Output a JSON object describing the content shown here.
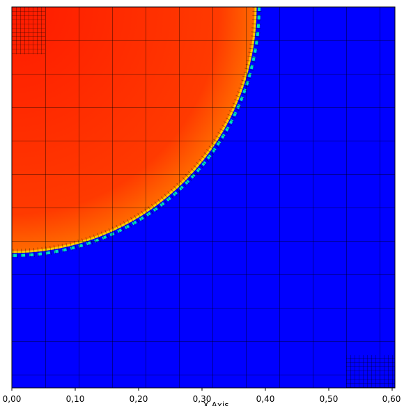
{
  "chart_data": {
    "type": "field",
    "xlabel": "X Axis",
    "xlim": [
      0,
      0.6
    ],
    "xticks": [
      {
        "value": 0,
        "label": "0,00"
      },
      {
        "value": 0.1,
        "label": "0,10"
      },
      {
        "value": 0.2,
        "label": "0,20"
      },
      {
        "value": 0.3,
        "label": "0,30"
      },
      {
        "value": 0.4,
        "label": "0,40"
      },
      {
        "value": 0.5,
        "label": "0,50"
      },
      {
        "value": 0.6,
        "label": "0,60"
      }
    ]
  }
}
